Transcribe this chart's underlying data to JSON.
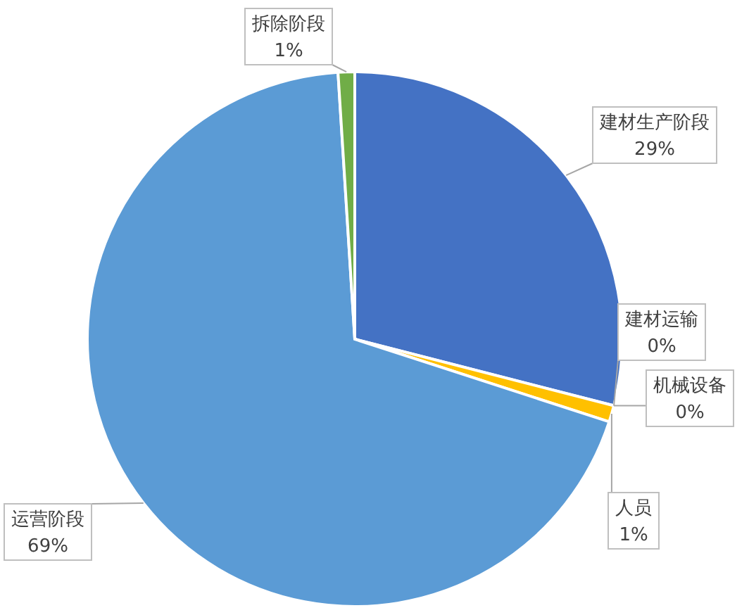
{
  "chart_data": {
    "type": "pie",
    "categories": [
      "建材生产阶段",
      "建材运输",
      "机械设备",
      "人员",
      "运营阶段",
      "拆除阶段"
    ],
    "values": [
      29,
      0,
      0,
      1,
      69,
      1
    ],
    "value_labels": [
      "29%",
      "0%",
      "0%",
      "1%",
      "69%",
      "1%"
    ],
    "colors": [
      "#4472c4",
      "#ed7d31",
      "#a5a5a5",
      "#ffc000",
      "#5b9bd5",
      "#70ad47"
    ]
  }
}
